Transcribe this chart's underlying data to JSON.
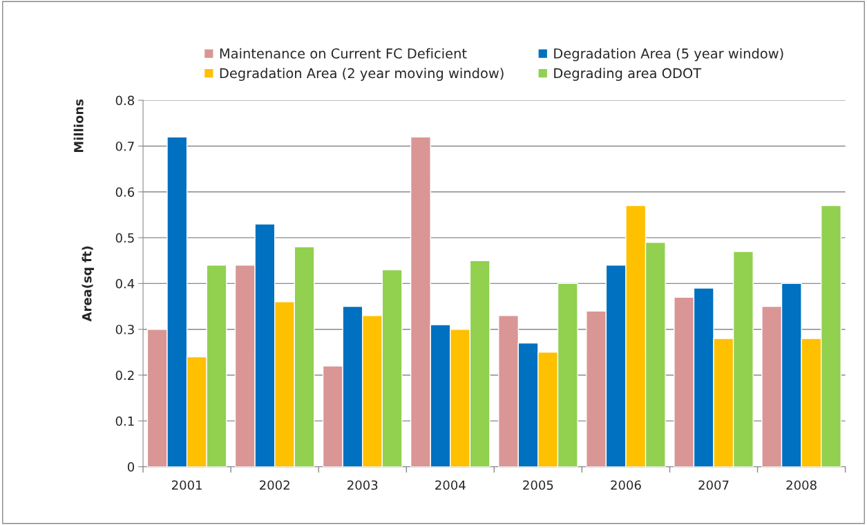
{
  "chart_data": {
    "type": "bar",
    "ylabel": "Area(sq ft)",
    "annotations": [
      "Millions"
    ],
    "categories": [
      "2001",
      "2002",
      "2003",
      "2004",
      "2005",
      "2006",
      "2007",
      "2008"
    ],
    "series": [
      {
        "name": "Maintenance on Current FC Deficient",
        "color": "#d99694",
        "values": [
          0.3,
          0.44,
          0.22,
          0.72,
          0.33,
          0.34,
          0.37,
          0.35
        ]
      },
      {
        "name": "Degradation Area (5 year window)",
        "color": "#0070c0",
        "values": [
          0.72,
          0.53,
          0.35,
          0.31,
          0.27,
          0.44,
          0.39,
          0.4
        ]
      },
      {
        "name": "Degradation Area (2 year moving window)",
        "color": "#ffc000",
        "values": [
          0.24,
          0.36,
          0.33,
          0.3,
          0.25,
          0.57,
          0.28,
          0.28
        ]
      },
      {
        "name": "Degrading area ODOT",
        "color": "#92d050",
        "values": [
          0.44,
          0.48,
          0.43,
          0.45,
          0.4,
          0.49,
          0.47,
          0.57
        ]
      }
    ],
    "ylim": [
      0,
      0.8
    ],
    "yticks": [
      0,
      0.1,
      0.2,
      0.3,
      0.4,
      0.5,
      0.6,
      0.7,
      0.8
    ],
    "grid": "y",
    "legend": "top"
  }
}
